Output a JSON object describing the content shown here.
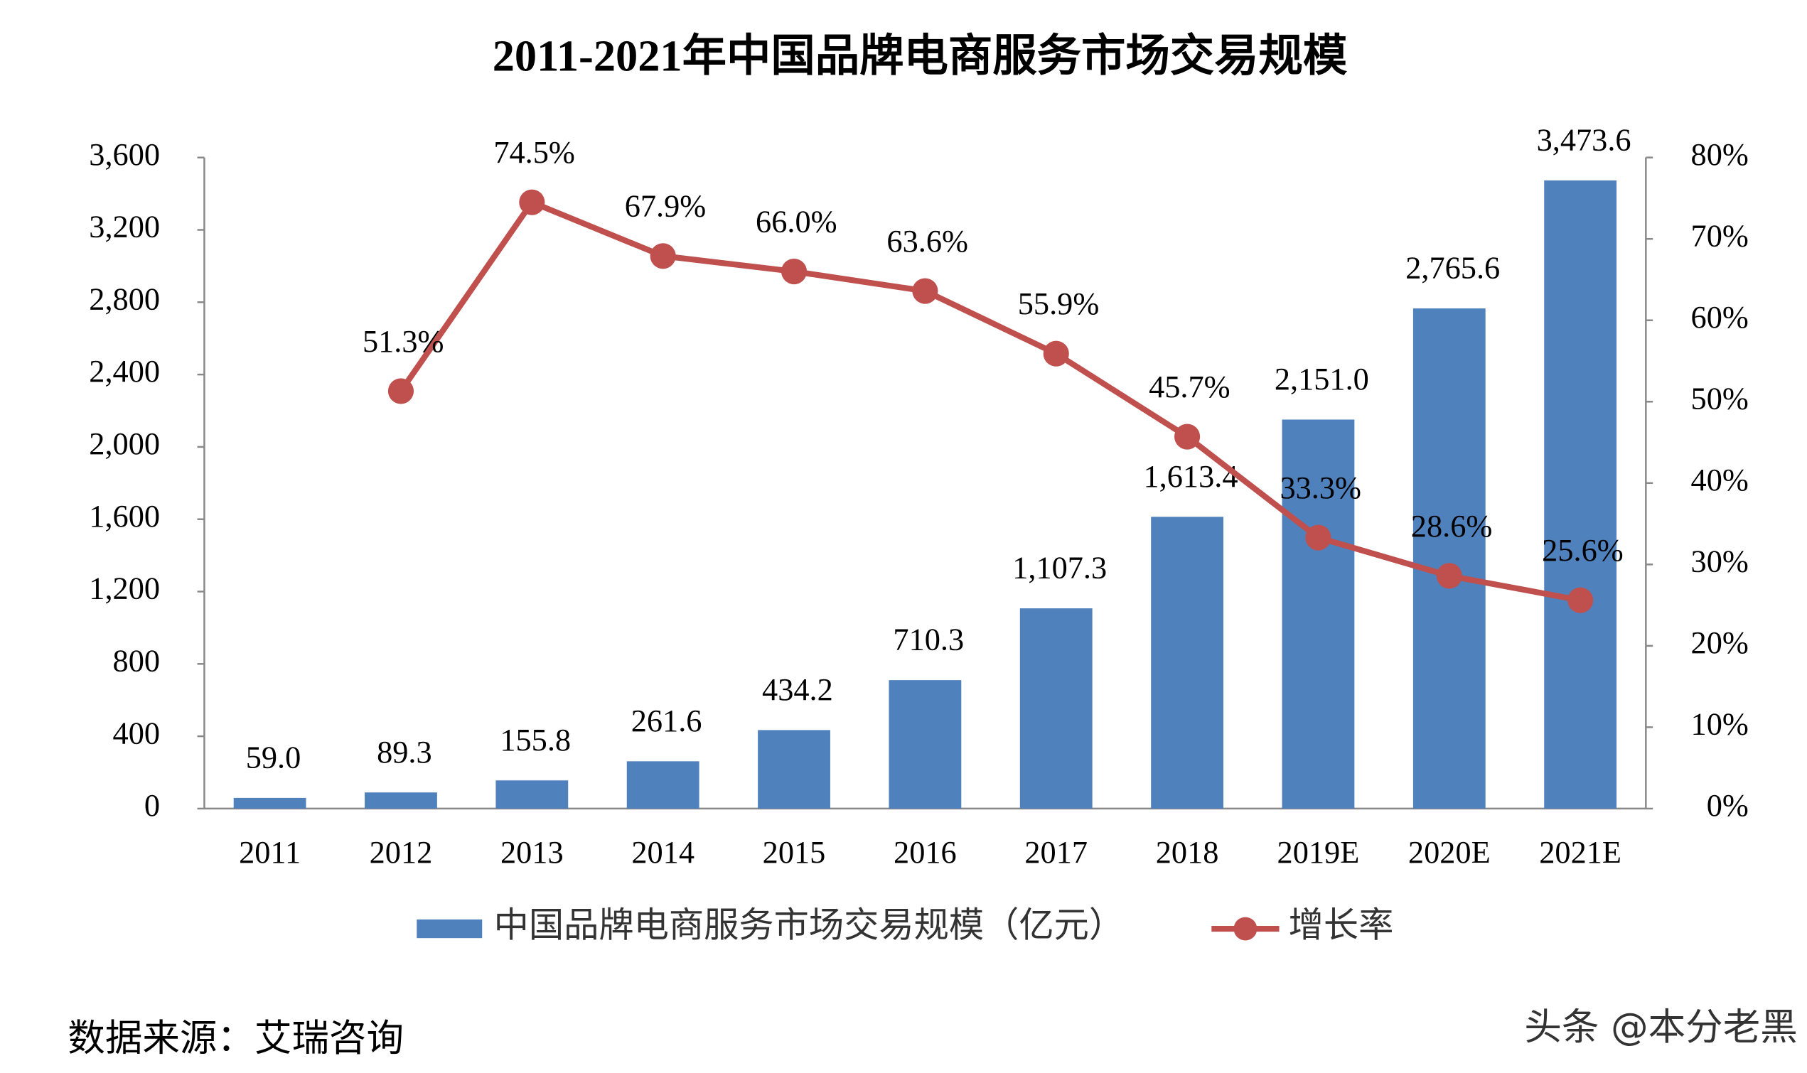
{
  "chart_data": {
    "type": "bar_line",
    "title": "2011-2021年中国品牌电商服务市场交易规模",
    "categories": [
      "2011",
      "2012",
      "2013",
      "2014",
      "2015",
      "2016",
      "2017",
      "2018",
      "2019E",
      "2020E",
      "2021E"
    ],
    "series": [
      {
        "name": "中国品牌电商服务市场交易规模（亿元）",
        "type": "bar",
        "color": "#4f81bd",
        "values": [
          59.0,
          89.3,
          155.8,
          261.6,
          434.2,
          710.3,
          1107.3,
          1613.4,
          2151.0,
          2765.6,
          3473.6
        ],
        "value_labels": [
          "59.0",
          "89.3",
          "155.8",
          "261.6",
          "434.2",
          "710.3",
          "1,107.3",
          "1,613.4",
          "2,151.0",
          "2,765.6",
          "3,473.6"
        ]
      },
      {
        "name": "增长率",
        "type": "line",
        "axis": "y2",
        "color": "#c0504d",
        "values": [
          null,
          51.3,
          74.5,
          67.9,
          66.0,
          63.6,
          55.9,
          45.7,
          33.3,
          28.6,
          25.6
        ],
        "value_labels": [
          null,
          "51.3%",
          "74.5%",
          "67.9%",
          "66.0%",
          "63.6%",
          "55.9%",
          "45.7%",
          "33.3%",
          "28.6%",
          "25.6%"
        ]
      }
    ],
    "ylim": [
      0,
      3600
    ],
    "yticks": [
      0,
      400,
      800,
      {
        "value": 1200,
        "label": "1,200"
      },
      {
        "value": 1600,
        "label": "1,600"
      },
      {
        "value": 2000,
        "label": "2,000"
      },
      {
        "value": 2400,
        "label": "2,400"
      },
      {
        "value": 2800,
        "label": "2,800"
      },
      {
        "value": 3200,
        "label": "3,200"
      },
      {
        "value": 3600,
        "label": "3,600"
      }
    ],
    "y2lim": [
      0,
      80
    ],
    "y2ticks": [
      {
        "value": 0,
        "label": "0%"
      },
      {
        "value": 10,
        "label": "10%"
      },
      {
        "value": 20,
        "label": "20%"
      },
      {
        "value": 30,
        "label": "30%"
      },
      {
        "value": 40,
        "label": "40%"
      },
      {
        "value": 50,
        "label": "50%"
      },
      {
        "value": 60,
        "label": "60%"
      },
      {
        "value": 70,
        "label": "70%"
      },
      {
        "value": 80,
        "label": "80%"
      }
    ],
    "grid": false,
    "legend": "bottom",
    "source": "数据来源：艾瑞咨询",
    "watermark": "头条 @本分老黑"
  }
}
